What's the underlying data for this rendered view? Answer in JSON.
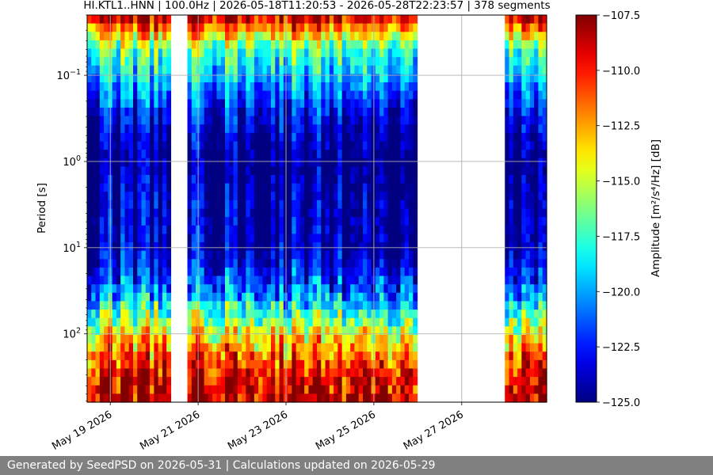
{
  "chart_data": {
    "type": "heatmap",
    "title": "HI.KTL1..HNN | 100.0Hz | 2026-05-18T11:20:53 - 2026-05-28T22:23:57 | 378 segments",
    "ylabel": "Period [s]",
    "y_scale": "log",
    "y_inverted": true,
    "y_range": [
      0.02,
      620
    ],
    "x_range": [
      "2026-05-18T11:20:53",
      "2026-05-28T22:23:57"
    ],
    "x_ticks": [
      {
        "date": "2026-05-19",
        "label": "May 19 2026"
      },
      {
        "date": "2026-05-21",
        "label": "May 21 2026"
      },
      {
        "date": "2026-05-23",
        "label": "May 23 2026"
      },
      {
        "date": "2026-05-25",
        "label": "May 25 2026"
      },
      {
        "date": "2026-05-27",
        "label": "May 27 2026"
      }
    ],
    "y_ticks": [
      {
        "value": 0.1,
        "label": "10",
        "exp": "−1"
      },
      {
        "value": 1,
        "label": "10",
        "exp": "0"
      },
      {
        "value": 10,
        "label": "10",
        "exp": "1"
      },
      {
        "value": 100,
        "label": "10",
        "exp": "2"
      }
    ],
    "grid": true,
    "colormap": "jet",
    "colorbar": {
      "label": "Amplitude [m²/s⁴/Hz] [dB]",
      "range": [
        -125.0,
        -107.5
      ],
      "ticks": [
        "−107.5",
        "−110.0",
        "−112.5",
        "−115.0",
        "−117.5",
        "−120.0",
        "−122.5",
        "−125.0"
      ],
      "tick_values": [
        -107.5,
        -110.0,
        -112.5,
        -115.0,
        -117.5,
        -120.0,
        -122.5,
        -125.0
      ]
    },
    "data_gaps": [
      [
        "2026-05-20T09:00:00",
        "2026-05-20T18:30:00"
      ],
      [
        "2026-05-25T23:00:00",
        "2026-05-27T23:00:00"
      ]
    ],
    "amplitude_profile": [
      {
        "period": 0.02,
        "db": -108
      },
      {
        "period": 0.05,
        "db": -117
      },
      {
        "period": 0.1,
        "db": -119
      },
      {
        "period": 0.3,
        "db": -123
      },
      {
        "period": 1,
        "db": -125
      },
      {
        "period": 3,
        "db": -124
      },
      {
        "period": 10,
        "db": -124
      },
      {
        "period": 30,
        "db": -121
      },
      {
        "period": 100,
        "db": -114
      },
      {
        "period": 300,
        "db": -109
      },
      {
        "period": 620,
        "db": -108
      }
    ]
  },
  "footer": {
    "text": "Generated by SeedPSD on 2026-05-31 | Calculations updated on 2026-05-29"
  }
}
